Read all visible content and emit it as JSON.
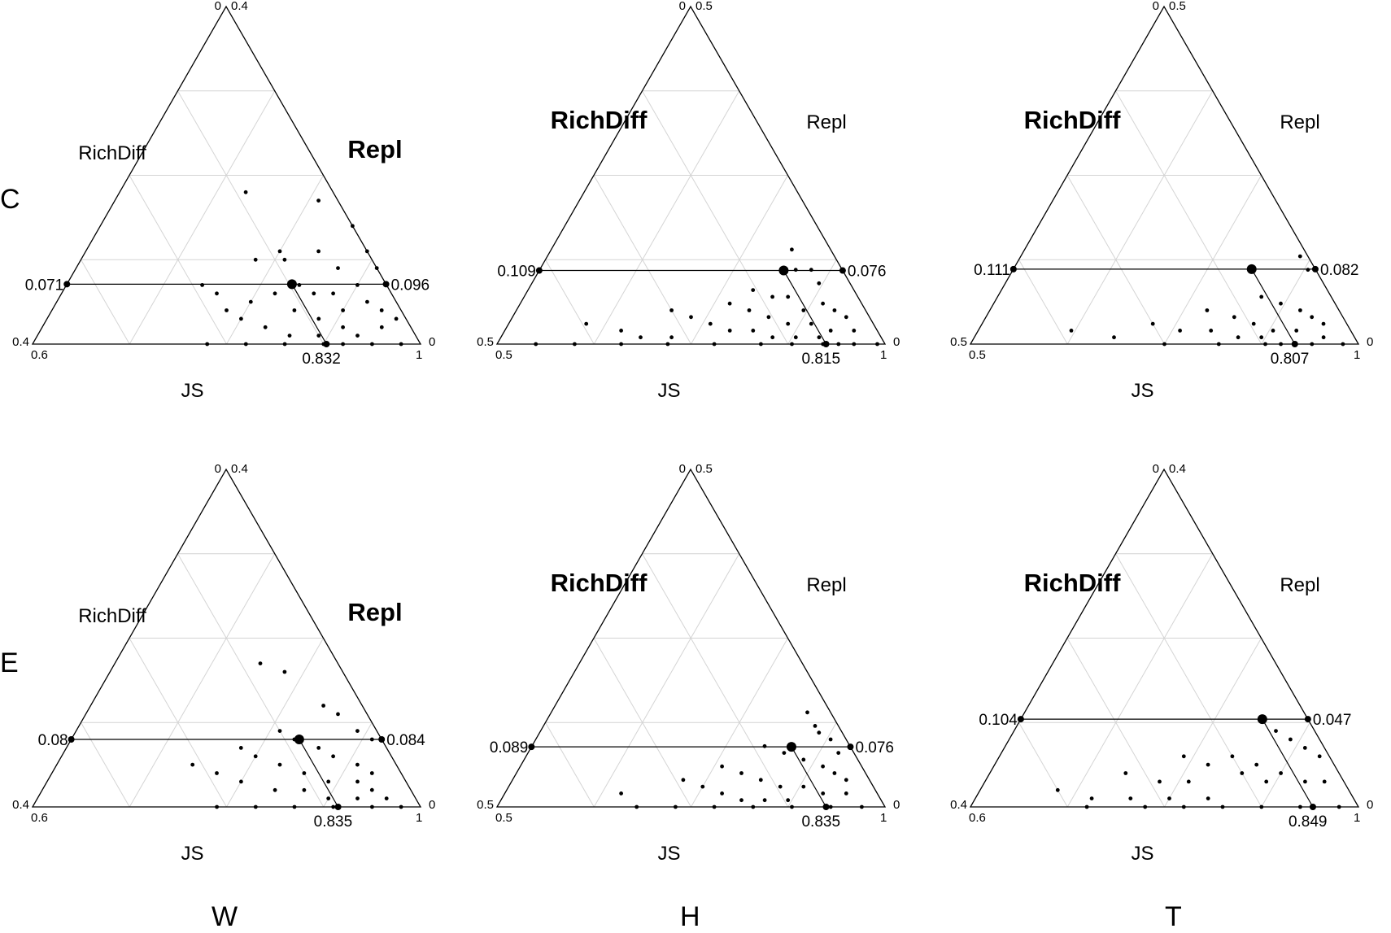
{
  "row_labels": [
    "C",
    "E"
  ],
  "col_labels": [
    "W",
    "H",
    "T"
  ],
  "chart_data": [
    {
      "type": "scatter",
      "subtype": "ternary",
      "axes": {
        "bottom": "JS",
        "left": "RichDiff",
        "right": "Repl"
      },
      "bold_axis": "right",
      "left_min": 0.6,
      "bottom_range": [
        0.6,
        1
      ],
      "side_range": [
        0,
        0.4
      ],
      "tick_labels": {
        "top_left": "0",
        "top_right": "0.4",
        "bottom_left_upper": "0.4",
        "bottom_left_lower": "0.6",
        "bottom_right_upper": "0",
        "bottom_right_lower": "1"
      },
      "mean": {
        "JS": 0.832,
        "RichDiff": 0.071,
        "Repl": 0.096
      },
      "mean_labels": {
        "JS": "0.832",
        "RichDiff": "0.071",
        "Repl": "0.096"
      },
      "points": [
        [
          0.81,
          0.17
        ],
        [
          0.73,
          0.18
        ],
        [
          0.84,
          0.11
        ],
        [
          0.81,
          0.1
        ],
        [
          0.87,
          0.09
        ],
        [
          0.89,
          0.11
        ],
        [
          0.86,
          0.14
        ],
        [
          0.9,
          0.07
        ],
        [
          0.91,
          0.09
        ],
        [
          0.93,
          0.07
        ],
        [
          0.84,
          0.07
        ],
        [
          0.86,
          0.06
        ],
        [
          0.88,
          0.06
        ],
        [
          0.9,
          0.04
        ],
        [
          0.92,
          0.05
        ],
        [
          0.94,
          0.04
        ],
        [
          0.96,
          0.03
        ],
        [
          0.78,
          0.1
        ],
        [
          0.8,
          0.11
        ],
        [
          0.8,
          0.05
        ],
        [
          0.82,
          0.06
        ],
        [
          0.85,
          0.04
        ],
        [
          0.88,
          0.03
        ],
        [
          0.91,
          0.02
        ],
        [
          0.93,
          0.01
        ],
        [
          0.95,
          0.02
        ],
        [
          0.74,
          0.07
        ],
        [
          0.76,
          0.06
        ],
        [
          0.78,
          0.04
        ],
        [
          0.8,
          0.03
        ],
        [
          0.83,
          0.02
        ],
        [
          0.86,
          0.01
        ],
        [
          0.89,
          0.01
        ],
        [
          0.92,
          0.0
        ],
        [
          0.78,
          0.0
        ],
        [
          0.82,
          0.0
        ],
        [
          0.86,
          0.0
        ],
        [
          0.9,
          0.0
        ],
        [
          0.95,
          0.0
        ],
        [
          0.98,
          0.0
        ]
      ]
    },
    {
      "type": "scatter",
      "subtype": "ternary",
      "axes": {
        "bottom": "JS",
        "left": "RichDiff",
        "right": "Repl"
      },
      "bold_axis": "left",
      "left_min": 0.5,
      "bottom_range": [
        0.5,
        1
      ],
      "side_range": [
        0,
        0.5
      ],
      "tick_labels": {
        "top_left": "0",
        "top_right": "0.5",
        "bottom_left_upper": "0.5",
        "bottom_left_lower": "0.5",
        "bottom_right_upper": "0",
        "bottom_right_lower": "1"
      },
      "mean": {
        "JS": 0.815,
        "RichDiff": 0.109,
        "Repl": 0.076
      },
      "mean_labels": {
        "JS": "0.815",
        "RichDiff": "0.109",
        "Repl": "0.076"
      },
      "points": [
        [
          0.81,
          0.14
        ],
        [
          0.83,
          0.11
        ],
        [
          0.85,
          0.11
        ],
        [
          0.87,
          0.09
        ],
        [
          0.79,
          0.08
        ],
        [
          0.82,
          0.07
        ],
        [
          0.84,
          0.07
        ],
        [
          0.87,
          0.05
        ],
        [
          0.89,
          0.06
        ],
        [
          0.91,
          0.05
        ],
        [
          0.93,
          0.04
        ],
        [
          0.77,
          0.06
        ],
        [
          0.8,
          0.05
        ],
        [
          0.83,
          0.04
        ],
        [
          0.86,
          0.03
        ],
        [
          0.89,
          0.03
        ],
        [
          0.92,
          0.02
        ],
        [
          0.95,
          0.02
        ],
        [
          0.7,
          0.05
        ],
        [
          0.73,
          0.04
        ],
        [
          0.76,
          0.03
        ],
        [
          0.79,
          0.02
        ],
        [
          0.82,
          0.02
        ],
        [
          0.85,
          0.01
        ],
        [
          0.88,
          0.01
        ],
        [
          0.91,
          0.01
        ],
        [
          0.94,
          0.0
        ],
        [
          0.6,
          0.03
        ],
        [
          0.65,
          0.02
        ],
        [
          0.68,
          0.01
        ],
        [
          0.72,
          0.01
        ],
        [
          0.55,
          0.0
        ],
        [
          0.6,
          0.0
        ],
        [
          0.66,
          0.0
        ],
        [
          0.72,
          0.0
        ],
        [
          0.78,
          0.0
        ],
        [
          0.84,
          0.0
        ],
        [
          0.88,
          0.0
        ],
        [
          0.92,
          0.0
        ],
        [
          0.96,
          0.0
        ],
        [
          0.99,
          0.0
        ]
      ]
    },
    {
      "type": "scatter",
      "subtype": "ternary",
      "axes": {
        "bottom": "JS",
        "left": "RichDiff",
        "right": "Repl"
      },
      "bold_axis": "left",
      "left_min": 0.5,
      "bottom_range": [
        0.5,
        1
      ],
      "side_range": [
        0,
        0.5
      ],
      "tick_labels": {
        "top_left": "0",
        "top_right": "0.5",
        "bottom_left_upper": "0.5",
        "bottom_left_lower": "0.5",
        "bottom_right_upper": "0",
        "bottom_right_lower": "1"
      },
      "mean": {
        "JS": 0.807,
        "RichDiff": 0.111,
        "Repl": 0.082
      },
      "mean_labels": {
        "JS": "0.807",
        "RichDiff": "0.111",
        "Repl": "0.082"
      },
      "points": [
        [
          0.86,
          0.13
        ],
        [
          0.88,
          0.11
        ],
        [
          0.84,
          0.07
        ],
        [
          0.87,
          0.06
        ],
        [
          0.9,
          0.05
        ],
        [
          0.92,
          0.04
        ],
        [
          0.94,
          0.03
        ],
        [
          0.78,
          0.05
        ],
        [
          0.82,
          0.04
        ],
        [
          0.85,
          0.03
        ],
        [
          0.88,
          0.02
        ],
        [
          0.91,
          0.02
        ],
        [
          0.95,
          0.01
        ],
        [
          0.72,
          0.03
        ],
        [
          0.76,
          0.02
        ],
        [
          0.8,
          0.02
        ],
        [
          0.84,
          0.01
        ],
        [
          0.87,
          0.01
        ],
        [
          0.9,
          0.0
        ],
        [
          0.62,
          0.02
        ],
        [
          0.68,
          0.01
        ],
        [
          0.75,
          0.0
        ],
        [
          0.82,
          0.0
        ],
        [
          0.88,
          0.0
        ],
        [
          0.94,
          0.0
        ],
        [
          0.98,
          0.0
        ]
      ]
    },
    {
      "type": "scatter",
      "subtype": "ternary",
      "axes": {
        "bottom": "JS",
        "left": "RichDiff",
        "right": "Repl"
      },
      "bold_axis": "right",
      "left_min": 0.6,
      "bottom_range": [
        0.6,
        1
      ],
      "side_range": [
        0,
        0.4
      ],
      "tick_labels": {
        "top_left": "0",
        "top_right": "0.4",
        "bottom_left_upper": "0.4",
        "bottom_left_lower": "0.6",
        "bottom_right_upper": "0",
        "bottom_right_lower": "1"
      },
      "mean": {
        "JS": 0.835,
        "RichDiff": 0.08,
        "Repl": 0.084
      },
      "mean_labels": {
        "JS": "0.835",
        "RichDiff": "0.08",
        "Repl": "0.084"
      },
      "points": [
        [
          0.75,
          0.17
        ],
        [
          0.78,
          0.16
        ],
        [
          0.84,
          0.12
        ],
        [
          0.86,
          0.11
        ],
        [
          0.89,
          0.09
        ],
        [
          0.91,
          0.08
        ],
        [
          0.81,
          0.09
        ],
        [
          0.83,
          0.08
        ],
        [
          0.86,
          0.07
        ],
        [
          0.88,
          0.06
        ],
        [
          0.91,
          0.05
        ],
        [
          0.93,
          0.04
        ],
        [
          0.78,
          0.07
        ],
        [
          0.8,
          0.06
        ],
        [
          0.83,
          0.05
        ],
        [
          0.86,
          0.04
        ],
        [
          0.89,
          0.03
        ],
        [
          0.92,
          0.03
        ],
        [
          0.94,
          0.02
        ],
        [
          0.74,
          0.05
        ],
        [
          0.77,
          0.04
        ],
        [
          0.8,
          0.03
        ],
        [
          0.84,
          0.02
        ],
        [
          0.87,
          0.02
        ],
        [
          0.9,
          0.01
        ],
        [
          0.93,
          0.01
        ],
        [
          0.96,
          0.01
        ],
        [
          0.79,
          0.0
        ],
        [
          0.83,
          0.0
        ],
        [
          0.87,
          0.0
        ],
        [
          0.91,
          0.0
        ],
        [
          0.95,
          0.0
        ],
        [
          0.98,
          0.0
        ]
      ]
    },
    {
      "type": "scatter",
      "subtype": "ternary",
      "axes": {
        "bottom": "JS",
        "left": "RichDiff",
        "right": "Repl"
      },
      "bold_axis": "left",
      "left_min": 0.5,
      "bottom_range": [
        0.5,
        1
      ],
      "side_range": [
        0,
        0.5
      ],
      "tick_labels": {
        "top_left": "0",
        "top_right": "0.5",
        "bottom_left_upper": "0.5",
        "bottom_left_lower": "0.5",
        "bottom_right_upper": "0",
        "bottom_right_lower": "1"
      },
      "mean": {
        "JS": 0.835,
        "RichDiff": 0.089,
        "Repl": 0.076
      },
      "mean_labels": {
        "JS": "0.835",
        "RichDiff": "0.089",
        "Repl": "0.076"
      },
      "points": [
        [
          0.83,
          0.14
        ],
        [
          0.85,
          0.12
        ],
        [
          0.86,
          0.11
        ],
        [
          0.88,
          0.1
        ],
        [
          0.9,
          0.08
        ],
        [
          0.8,
          0.09
        ],
        [
          0.83,
          0.08
        ],
        [
          0.86,
          0.07
        ],
        [
          0.89,
          0.06
        ],
        [
          0.91,
          0.05
        ],
        [
          0.93,
          0.04
        ],
        [
          0.76,
          0.06
        ],
        [
          0.79,
          0.05
        ],
        [
          0.82,
          0.04
        ],
        [
          0.85,
          0.03
        ],
        [
          0.88,
          0.03
        ],
        [
          0.91,
          0.02
        ],
        [
          0.94,
          0.02
        ],
        [
          0.72,
          0.04
        ],
        [
          0.75,
          0.03
        ],
        [
          0.78,
          0.02
        ],
        [
          0.81,
          0.01
        ],
        [
          0.84,
          0.01
        ],
        [
          0.87,
          0.01
        ],
        [
          0.65,
          0.02
        ],
        [
          0.68,
          0.0
        ],
        [
          0.73,
          0.0
        ],
        [
          0.78,
          0.0
        ],
        [
          0.83,
          0.0
        ],
        [
          0.88,
          0.0
        ],
        [
          0.93,
          0.0
        ],
        [
          0.97,
          0.0
        ]
      ]
    },
    {
      "type": "scatter",
      "subtype": "ternary",
      "axes": {
        "bottom": "JS",
        "left": "RichDiff",
        "right": "Repl"
      },
      "bold_axis": "left",
      "left_min": 0.6,
      "bottom_range": [
        0.6,
        1
      ],
      "side_range": [
        0,
        0.4
      ],
      "tick_labels": {
        "top_left": "0",
        "top_right": "0.4",
        "bottom_left_upper": "0.4",
        "bottom_left_lower": "0.6",
        "bottom_right_upper": "0",
        "bottom_right_lower": "1"
      },
      "mean": {
        "JS": 0.849,
        "RichDiff": 0.104,
        "Repl": 0.047
      },
      "mean_labels": {
        "JS": "0.849",
        "RichDiff": "0.104",
        "Repl": "0.047"
      },
      "points": [
        [
          0.87,
          0.09
        ],
        [
          0.89,
          0.08
        ],
        [
          0.91,
          0.07
        ],
        [
          0.93,
          0.06
        ],
        [
          0.84,
          0.06
        ],
        [
          0.87,
          0.05
        ],
        [
          0.9,
          0.04
        ],
        [
          0.93,
          0.03
        ],
        [
          0.95,
          0.03
        ],
        [
          0.79,
          0.06
        ],
        [
          0.82,
          0.05
        ],
        [
          0.86,
          0.04
        ],
        [
          0.89,
          0.03
        ],
        [
          0.74,
          0.04
        ],
        [
          0.78,
          0.03
        ],
        [
          0.81,
          0.03
        ],
        [
          0.68,
          0.02
        ],
        [
          0.72,
          0.01
        ],
        [
          0.76,
          0.01
        ],
        [
          0.8,
          0.01
        ],
        [
          0.84,
          0.01
        ],
        [
          0.72,
          0.0
        ],
        [
          0.78,
          0.0
        ],
        [
          0.82,
          0.0
        ],
        [
          0.86,
          0.0
        ],
        [
          0.9,
          0.0
        ],
        [
          0.94,
          0.0
        ],
        [
          0.98,
          0.0
        ]
      ]
    }
  ]
}
